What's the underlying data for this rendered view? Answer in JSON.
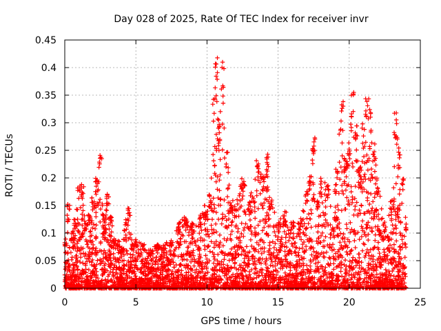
{
  "chart_data": {
    "type": "scatter",
    "title": "Day 028 of 2025, Rate Of TEC Index for receiver invr",
    "xlabel": "GPS time / hours",
    "ylabel": "ROTI / TECUs",
    "xlim": [
      0,
      25
    ],
    "ylim": [
      0,
      0.45
    ],
    "xticks": [
      "0",
      "5",
      "10",
      "15",
      "20",
      "25"
    ],
    "yticks": [
      "0",
      "0.05",
      "0.1",
      "0.15",
      "0.2",
      "0.25",
      "0.3",
      "0.35",
      "0.4",
      "0.45"
    ],
    "grid": true,
    "marker": "+",
    "color": "#ff0000",
    "envelope": [
      {
        "x": 0.0,
        "y": 0.09
      },
      {
        "x": 0.25,
        "y": 0.155
      },
      {
        "x": 0.5,
        "y": 0.1
      },
      {
        "x": 0.75,
        "y": 0.125
      },
      {
        "x": 1.0,
        "y": 0.185
      },
      {
        "x": 1.25,
        "y": 0.19
      },
      {
        "x": 1.5,
        "y": 0.12
      },
      {
        "x": 1.75,
        "y": 0.135
      },
      {
        "x": 2.0,
        "y": 0.17
      },
      {
        "x": 2.25,
        "y": 0.205
      },
      {
        "x": 2.5,
        "y": 0.245
      },
      {
        "x": 2.75,
        "y": 0.14
      },
      {
        "x": 3.0,
        "y": 0.18
      },
      {
        "x": 3.25,
        "y": 0.13
      },
      {
        "x": 3.5,
        "y": 0.09
      },
      {
        "x": 3.75,
        "y": 0.09
      },
      {
        "x": 4.0,
        "y": 0.07
      },
      {
        "x": 4.25,
        "y": 0.12
      },
      {
        "x": 4.5,
        "y": 0.15
      },
      {
        "x": 4.75,
        "y": 0.08
      },
      {
        "x": 5.0,
        "y": 0.09
      },
      {
        "x": 5.5,
        "y": 0.08
      },
      {
        "x": 6.0,
        "y": 0.07
      },
      {
        "x": 6.5,
        "y": 0.08
      },
      {
        "x": 7.0,
        "y": 0.08
      },
      {
        "x": 7.5,
        "y": 0.09
      },
      {
        "x": 8.0,
        "y": 0.12
      },
      {
        "x": 8.5,
        "y": 0.13
      },
      {
        "x": 9.0,
        "y": 0.12
      },
      {
        "x": 9.5,
        "y": 0.13
      },
      {
        "x": 9.75,
        "y": 0.15
      },
      {
        "x": 10.0,
        "y": 0.14
      },
      {
        "x": 10.25,
        "y": 0.17
      },
      {
        "x": 10.5,
        "y": 0.355
      },
      {
        "x": 10.65,
        "y": 0.425
      },
      {
        "x": 10.85,
        "y": 0.3
      },
      {
        "x": 11.1,
        "y": 0.41
      },
      {
        "x": 11.4,
        "y": 0.25
      },
      {
        "x": 11.75,
        "y": 0.16
      },
      {
        "x": 12.0,
        "y": 0.15
      },
      {
        "x": 12.5,
        "y": 0.2
      },
      {
        "x": 13.0,
        "y": 0.16
      },
      {
        "x": 13.5,
        "y": 0.235
      },
      {
        "x": 14.0,
        "y": 0.21
      },
      {
        "x": 14.25,
        "y": 0.245
      },
      {
        "x": 14.5,
        "y": 0.16
      },
      {
        "x": 15.0,
        "y": 0.12
      },
      {
        "x": 15.5,
        "y": 0.14
      },
      {
        "x": 16.0,
        "y": 0.12
      },
      {
        "x": 16.5,
        "y": 0.12
      },
      {
        "x": 17.0,
        "y": 0.18
      },
      {
        "x": 17.25,
        "y": 0.21
      },
      {
        "x": 17.5,
        "y": 0.285
      },
      {
        "x": 17.75,
        "y": 0.16
      },
      {
        "x": 18.0,
        "y": 0.2
      },
      {
        "x": 18.5,
        "y": 0.19
      },
      {
        "x": 19.0,
        "y": 0.2
      },
      {
        "x": 19.5,
        "y": 0.34
      },
      {
        "x": 19.75,
        "y": 0.22
      },
      {
        "x": 20.0,
        "y": 0.27
      },
      {
        "x": 20.25,
        "y": 0.365
      },
      {
        "x": 20.5,
        "y": 0.3
      },
      {
        "x": 20.75,
        "y": 0.22
      },
      {
        "x": 21.0,
        "y": 0.3
      },
      {
        "x": 21.25,
        "y": 0.36
      },
      {
        "x": 21.5,
        "y": 0.33
      },
      {
        "x": 21.75,
        "y": 0.265
      },
      {
        "x": 22.0,
        "y": 0.2
      },
      {
        "x": 22.5,
        "y": 0.12
      },
      {
        "x": 23.0,
        "y": 0.16
      },
      {
        "x": 23.25,
        "y": 0.32
      },
      {
        "x": 23.5,
        "y": 0.25
      },
      {
        "x": 23.75,
        "y": 0.205
      },
      {
        "x": 24.0,
        "y": 0.12
      }
    ]
  }
}
